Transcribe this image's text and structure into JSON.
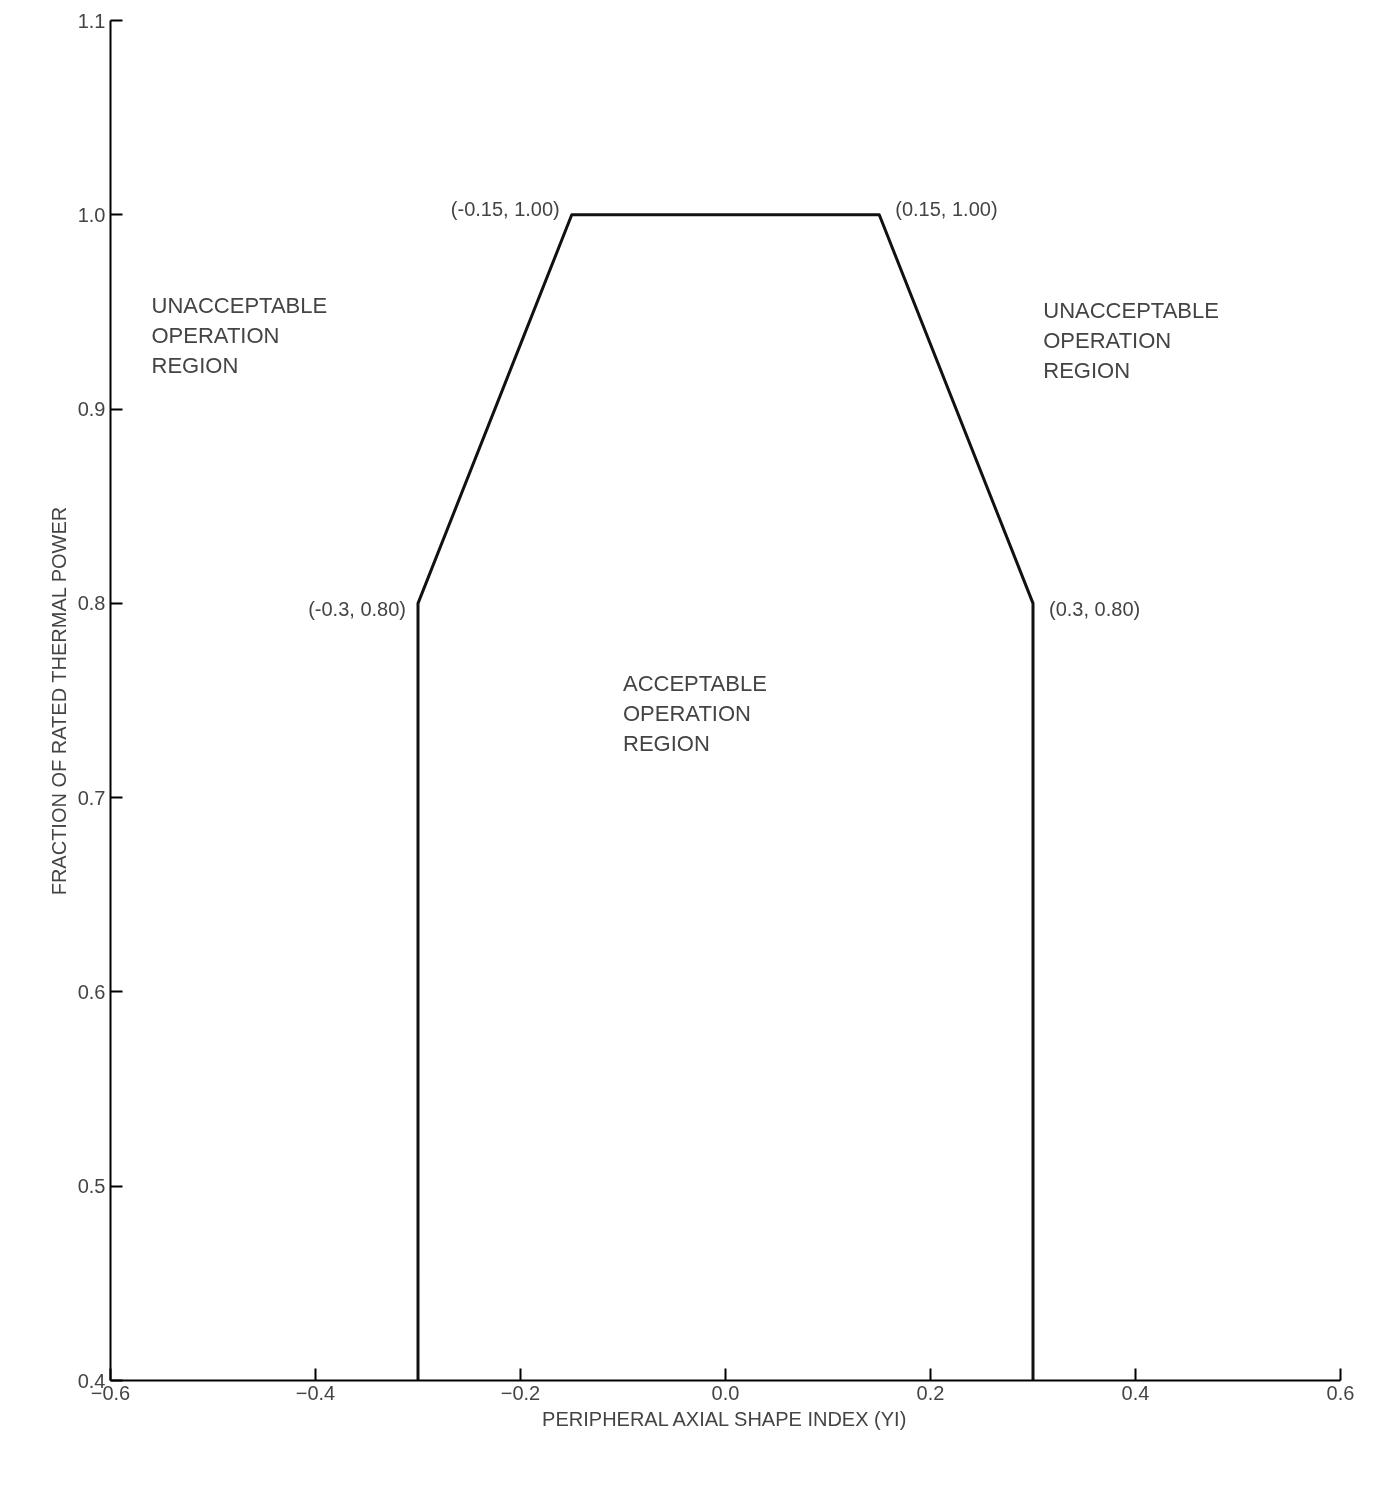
{
  "chart_data": {
    "type": "line",
    "xlabel": "PERIPHERAL AXIAL SHAPE INDEX (YI)",
    "ylabel": "FRACTION OF RATED THERMAL POWER",
    "x": [
      -0.3,
      -0.3,
      -0.15,
      0.15,
      0.3,
      0.3
    ],
    "series": [
      {
        "color": "#111111",
        "values": [
          0.4,
          0.8,
          1.0,
          1.0,
          0.8,
          0.4
        ]
      }
    ],
    "xlim": [
      -0.6,
      0.6
    ],
    "ylim": [
      0.4,
      1.1
    ],
    "xticks": [
      -0.6,
      -0.4,
      -0.2,
      {
        "value": 0,
        "label": "0.0"
      },
      0.2,
      0.4,
      0.6
    ],
    "yticks": [
      0.4,
      0.5,
      0.6,
      0.7,
      0.8,
      0.9,
      {
        "value": 1.0,
        "label": "1.0"
      },
      1.1
    ],
    "grid": false,
    "marker": "none",
    "line_style": "solid",
    "annotations": [
      {
        "text": "(-0.15, 1.00)",
        "x": -0.15,
        "y": 1.0
      },
      {
        "text": "(0.15, 1.00)",
        "x": 0.15,
        "y": 1.0
      },
      {
        "text": "(-0.3, 0.80)",
        "x": -0.3,
        "y": 0.8
      },
      {
        "text": "(0.3, 0.80)",
        "x": 0.3,
        "y": 0.8
      },
      "UNACCEPTABLE\nOPERATION\nREGION",
      "UNACCEPTABLE\nOPERATION\nREGION",
      "ACCEPTABLE\nOPERATION\nREGION"
    ]
  }
}
